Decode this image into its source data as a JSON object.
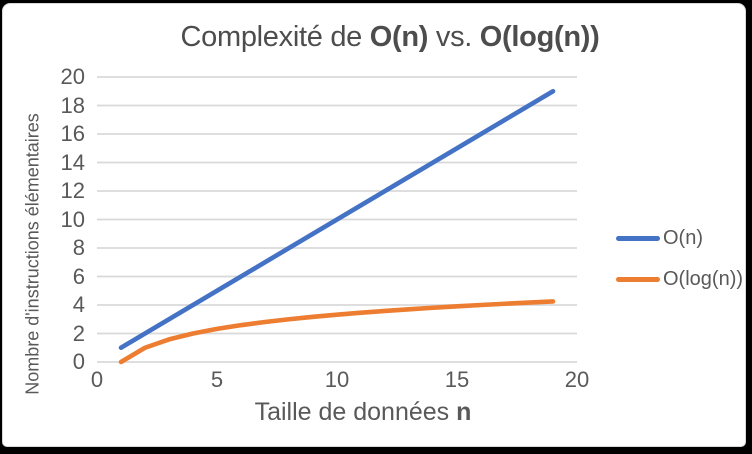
{
  "frame": {
    "background": "#000000",
    "panel_background": "#ffffff",
    "panel_border": "#d9d9d9"
  },
  "title": {
    "part1": "Complexité de ",
    "bold1": "O(n)",
    "part2": " vs. ",
    "bold2": "O(log(n))"
  },
  "axes": {
    "y_title": "Nombre d'instructions élémentaires",
    "x_title_part1": "Taille de données ",
    "x_title_bold": "n"
  },
  "chart_data": {
    "type": "line",
    "title": "Complexité de O(n) vs. O(log(n))",
    "xlabel": "Taille de données n",
    "ylabel": "Nombre d'instructions élémentaires",
    "x": [
      1,
      2,
      3,
      4,
      5,
      6,
      7,
      8,
      9,
      10,
      11,
      12,
      13,
      14,
      15,
      16,
      17,
      18,
      19
    ],
    "series": [
      {
        "name": "O(n)",
        "color": "#4472C4",
        "values": [
          1,
          2,
          3,
          4,
          5,
          6,
          7,
          8,
          9,
          10,
          11,
          12,
          13,
          14,
          15,
          16,
          17,
          18,
          19
        ]
      },
      {
        "name": "O(log(n))",
        "color": "#ED7D31",
        "values": [
          0,
          1,
          1.585,
          2,
          2.322,
          2.585,
          2.807,
          3,
          3.17,
          3.322,
          3.459,
          3.585,
          3.7,
          3.807,
          3.907,
          4,
          4.087,
          4.17,
          4.248
        ]
      }
    ],
    "xlim": [
      0,
      20
    ],
    "ylim": [
      0,
      20
    ],
    "xticks": [
      0,
      5,
      10,
      15,
      20
    ],
    "yticks": [
      0,
      2,
      4,
      6,
      8,
      10,
      12,
      14,
      16,
      18,
      20
    ],
    "grid": "horizontal",
    "grid_color": "#d9d9d9",
    "tick_text_color": "#595959",
    "title_text_color": "#4d4d4d",
    "legend_position": "right"
  }
}
